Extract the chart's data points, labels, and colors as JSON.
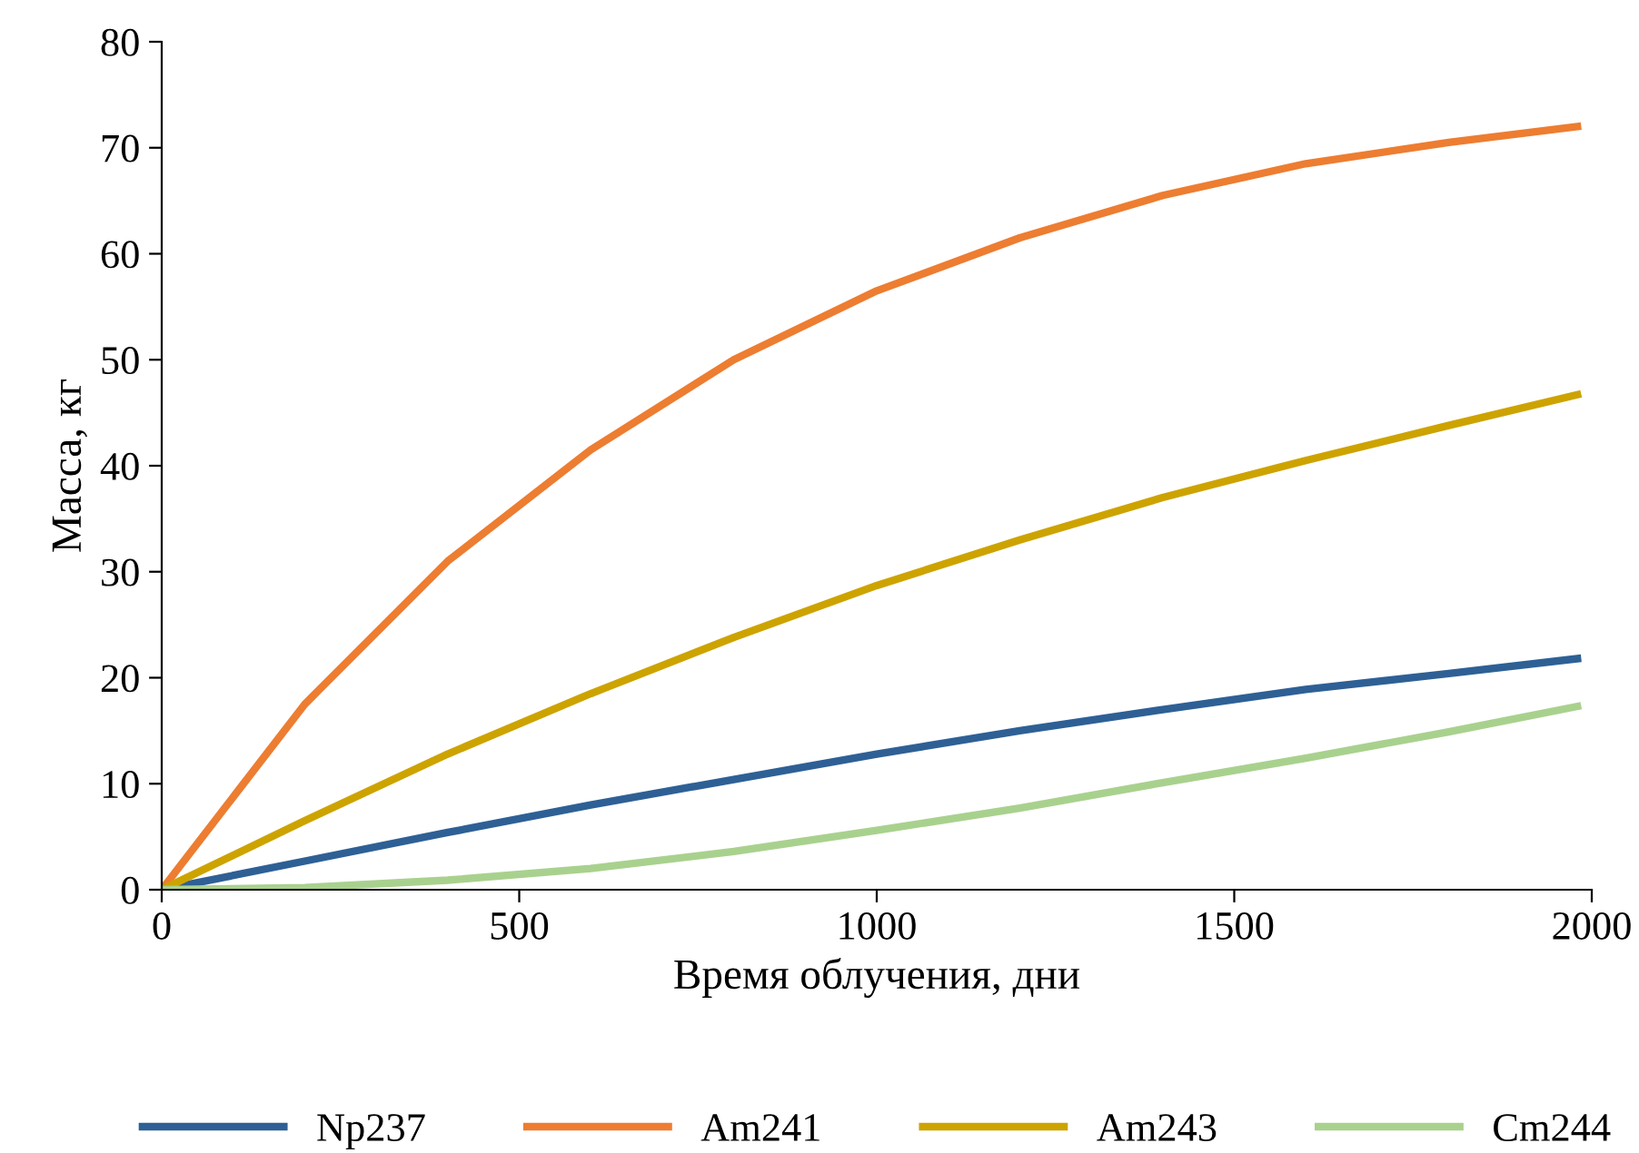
{
  "chart_data": {
    "type": "line",
    "xlabel": "Время облучения, дни",
    "ylabel": "Масса, кг",
    "x": [
      0,
      200,
      400,
      600,
      800,
      1000,
      1200,
      1400,
      1600,
      1800,
      1980
    ],
    "series": [
      {
        "name": "Np237",
        "color": "#2e6095",
        "values": [
          0,
          2.7,
          5.4,
          8,
          10.4,
          12.8,
          15,
          17,
          18.9,
          20.4,
          21.8
        ]
      },
      {
        "name": "Am241",
        "color": "#ed7d31",
        "values": [
          0,
          17.5,
          31,
          41.5,
          50,
          56.5,
          61.5,
          65.5,
          68.5,
          70.5,
          72
        ]
      },
      {
        "name": "Am243",
        "color": "#cda300",
        "values": [
          0,
          6.5,
          12.8,
          18.5,
          23.8,
          28.7,
          33,
          37,
          40.5,
          43.8,
          46.7
        ]
      },
      {
        "name": "Cm244",
        "color": "#a9d18e",
        "values": [
          0,
          0.2,
          0.9,
          2.0,
          3.6,
          5.6,
          7.7,
          10.1,
          12.4,
          14.9,
          17.3
        ]
      }
    ],
    "xlim": [
      0,
      2000
    ],
    "xticks": [
      0,
      500,
      1000,
      1500,
      2000
    ],
    "ylim": [
      0,
      80
    ],
    "yticks": [
      0,
      10,
      20,
      30,
      40,
      50,
      60,
      70,
      80
    ],
    "grid": false,
    "legend": "bottom",
    "marker": "none",
    "line_style": "solid"
  }
}
